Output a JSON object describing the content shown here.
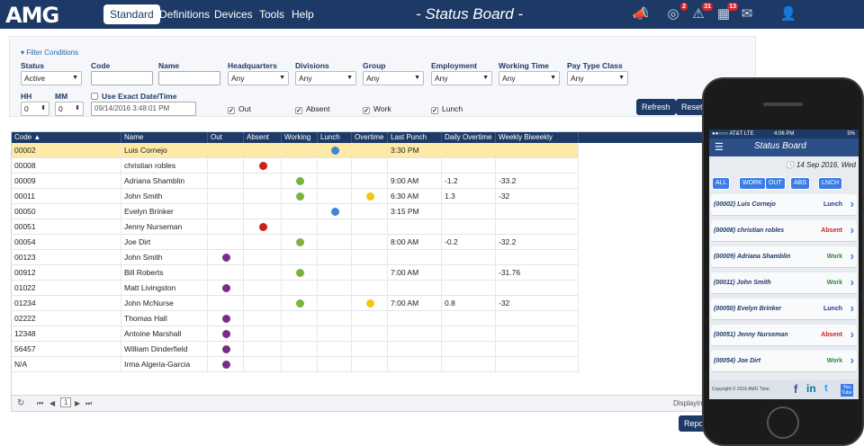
{
  "topbar": {
    "logo": "AMG",
    "nav": [
      "Standard",
      "Definitions",
      "Devices",
      "Tools",
      "Help"
    ],
    "title": "- Status Board -",
    "icons": [
      {
        "name": "announcement-icon",
        "badge": ""
      },
      {
        "name": "globe-icon",
        "badge": "2"
      },
      {
        "name": "alert-icon",
        "badge": "31"
      },
      {
        "name": "calendar-icon",
        "badge": "13"
      },
      {
        "name": "mail-icon",
        "badge": ""
      },
      {
        "name": "user-icon",
        "badge": ""
      }
    ]
  },
  "filters": {
    "toggle": "Filter Conditions",
    "status_label": "Status",
    "status_value": "Active",
    "code_label": "Code",
    "name_label": "Name",
    "headquarters_label": "Headquarters",
    "headquarters_value": "Any",
    "divisions_label": "Divisions",
    "divisions_value": "Any",
    "group_label": "Group",
    "group_value": "Any",
    "employment_label": "Employment",
    "employment_value": "Any",
    "working_time_label": "Working Time",
    "working_time_value": "Any",
    "pay_type_label": "Pay Type Class",
    "pay_type_value": "Any",
    "hh_label": "HH",
    "hh_value": "0",
    "mm_label": "MM",
    "mm_value": "0",
    "exact_date_label": "Use Exact Date/Time",
    "datetime_value": "09/14/2016 3:48:01 PM",
    "chk_out": "Out",
    "chk_absent": "Absent",
    "chk_work": "Work",
    "chk_lunch": "Lunch",
    "refresh": "Refresh",
    "reset": "Reset"
  },
  "grid": {
    "columns": [
      "Code ▲",
      "Name",
      "Out",
      "Absent",
      "Working",
      "Lunch",
      "Overtime",
      "Last Punch",
      "Daily Overtime",
      "Weekly Biweekly Overtime"
    ],
    "rows": [
      {
        "code": "00002",
        "name": "Luis Cornejo",
        "state": "lunch",
        "overtime": false,
        "last": "3:30 PM",
        "daily": "",
        "weekly": ""
      },
      {
        "code": "00008",
        "name": "christian robles",
        "state": "absent",
        "overtime": false,
        "last": "",
        "daily": "",
        "weekly": ""
      },
      {
        "code": "00009",
        "name": "Adriana Shamblin",
        "state": "work",
        "overtime": false,
        "last": "9:00 AM",
        "daily": "-1.2",
        "weekly": "-33.2"
      },
      {
        "code": "00011",
        "name": "John Smith",
        "state": "work",
        "overtime": true,
        "last": "6:30 AM",
        "daily": "1.3",
        "weekly": "-32"
      },
      {
        "code": "00050",
        "name": "Evelyn Brinker",
        "state": "lunch",
        "overtime": false,
        "last": "3:15 PM",
        "daily": "",
        "weekly": ""
      },
      {
        "code": "00051",
        "name": "Jenny Nurseman",
        "state": "absent",
        "overtime": false,
        "last": "",
        "daily": "",
        "weekly": ""
      },
      {
        "code": "00054",
        "name": "Joe Dirt",
        "state": "work",
        "overtime": false,
        "last": "8:00 AM",
        "daily": "-0.2",
        "weekly": "-32.2"
      },
      {
        "code": "00123",
        "name": "John Smith",
        "state": "out",
        "overtime": false,
        "last": "",
        "daily": "",
        "weekly": ""
      },
      {
        "code": "00912",
        "name": "Bill Roberts",
        "state": "work",
        "overtime": false,
        "last": "7:00 AM",
        "daily": "",
        "weekly": "-31.76"
      },
      {
        "code": "01022",
        "name": "Matt Livingston",
        "state": "out",
        "overtime": false,
        "last": "",
        "daily": "",
        "weekly": ""
      },
      {
        "code": "01234",
        "name": "John McNurse",
        "state": "work",
        "overtime": true,
        "last": "7:00 AM",
        "daily": "0.8",
        "weekly": "-32"
      },
      {
        "code": "02222",
        "name": "Thomas Hall",
        "state": "out",
        "overtime": false,
        "last": "",
        "daily": "",
        "weekly": ""
      },
      {
        "code": "12348",
        "name": "Antoine Marshall",
        "state": "out",
        "overtime": false,
        "last": "",
        "daily": "",
        "weekly": ""
      },
      {
        "code": "56457",
        "name": "William Dinderfield",
        "state": "out",
        "overtime": false,
        "last": "",
        "daily": "",
        "weekly": ""
      },
      {
        "code": "N/A",
        "name": "Irma Algeria-Garcia",
        "state": "out",
        "overtime": false,
        "last": "",
        "daily": "",
        "weekly": ""
      }
    ],
    "page": "1",
    "displaying": "Displaying",
    "report": "Report"
  },
  "phone": {
    "carrier": "●●○○○ AT&T  LTE",
    "time": "4:06 PM",
    "battery": "5%",
    "title": "Status Board",
    "date": "14 Sep 2016, Wed",
    "filters": [
      "ALL",
      "WORK",
      "OUT",
      "ABS",
      "LNCH"
    ],
    "items": [
      {
        "name": "(00002) Luis Cornejo",
        "status": "Lunch",
        "color": "#1d3a99"
      },
      {
        "name": "(00008) christian robles",
        "status": "Absent",
        "color": "#cc2020"
      },
      {
        "name": "(00009) Adriana Shamblin",
        "status": "Work",
        "color": "#2e8b2e"
      },
      {
        "name": "(00011) John Smith",
        "status": "Work",
        "color": "#2e8b2e"
      },
      {
        "name": "(00050) Evelyn Brinker",
        "status": "Lunch",
        "color": "#1d3a99"
      },
      {
        "name": "(00051) Jenny  Nurseman",
        "status": "Absent",
        "color": "#cc2020"
      },
      {
        "name": "(00054) Joe Dirt",
        "status": "Work",
        "color": "#2e8b2e"
      }
    ],
    "copyright": "Copyright © 2016 AMG Time.",
    "social": [
      "f",
      "in",
      "t",
      "You Tube"
    ]
  }
}
